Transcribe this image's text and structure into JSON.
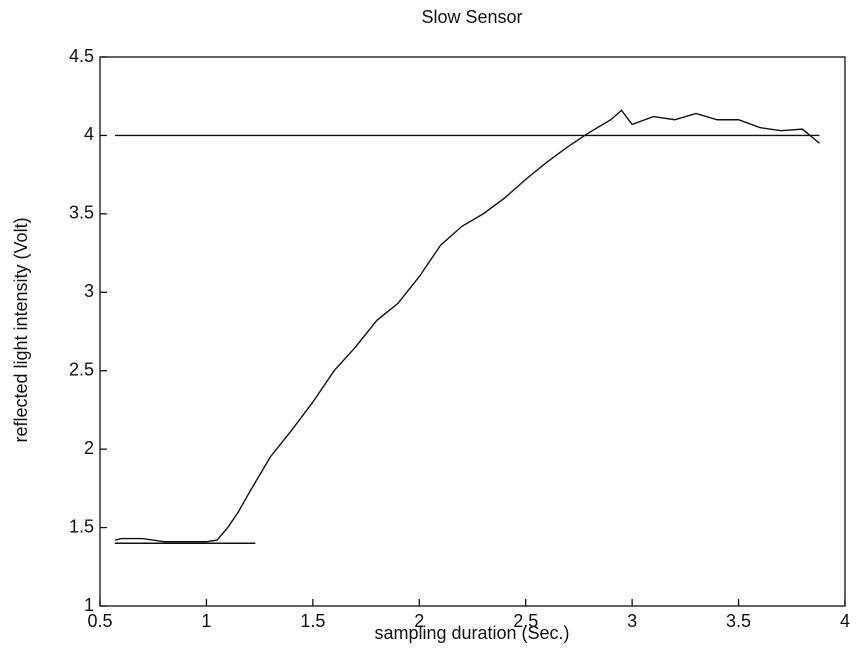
{
  "chart_data": {
    "type": "line",
    "title": "Slow Sensor",
    "x_label": "sampling duration (Sec.)",
    "y_label": "reflected light intensity (Volt)",
    "xlim": [
      0.5,
      4
    ],
    "ylim": [
      1,
      4.5
    ],
    "xticks": [
      0.5,
      1,
      1.5,
      2,
      2.5,
      3,
      3.5,
      4
    ],
    "yticks": [
      1,
      1.5,
      2,
      2.5,
      3,
      3.5,
      4,
      4.5
    ],
    "series": [
      {
        "color": "#111111",
        "x": [
          0.57,
          0.6,
          0.7,
          0.8,
          0.9,
          1.0,
          1.05,
          1.1,
          1.15,
          1.2,
          1.3,
          1.4,
          1.5,
          1.6,
          1.7,
          1.8,
          1.9,
          2.0,
          2.1,
          2.2,
          2.3,
          2.4,
          2.5,
          2.6,
          2.7,
          2.8,
          2.9,
          2.95,
          3.0,
          3.1,
          3.2,
          3.3,
          3.4,
          3.5,
          3.6,
          3.7,
          3.8,
          3.88
        ],
        "values": [
          1.42,
          1.43,
          1.43,
          1.41,
          1.41,
          1.41,
          1.42,
          1.5,
          1.6,
          1.72,
          1.95,
          2.12,
          2.3,
          2.5,
          2.65,
          2.82,
          2.93,
          3.1,
          3.3,
          3.42,
          3.5,
          3.6,
          3.72,
          3.83,
          3.93,
          4.02,
          4.1,
          4.16,
          4.07,
          4.12,
          4.1,
          4.14,
          4.1,
          4.1,
          4.05,
          4.03,
          4.04,
          3.95
        ]
      },
      {
        "color": "#111111",
        "x": [
          0.57,
          3.88
        ],
        "values": [
          4,
          4
        ]
      },
      {
        "color": "#111111",
        "x": [
          0.57,
          1.23
        ],
        "values": [
          1.4,
          1.4
        ]
      }
    ]
  }
}
